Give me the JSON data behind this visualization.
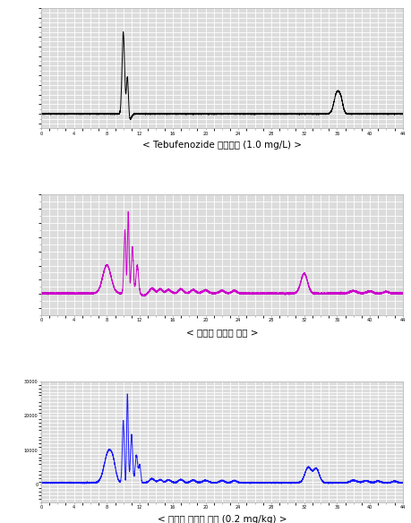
{
  "title1": "< Tebufenozide 표준용액 (1.0 mg/L) >",
  "title2": "< 미나리 무처리 시료 >",
  "title3": "< 미나리 회수율 시험 (0.2 mg/kg) >",
  "color1": "#000000",
  "color2": "#cc00cc",
  "color3": "#1a1aff",
  "bg_color": "#dcdcdc",
  "grid_color": "#ffffff",
  "xmin": 0.0,
  "xmax": 44.0,
  "plot1_ylim": [
    -1500,
    11000
  ],
  "plot2_ylim": [
    -3000,
    14000
  ],
  "plot3_ylim": [
    -5000,
    30000
  ],
  "title_fontsize": 7.5,
  "tick_fontsize": 3.5
}
